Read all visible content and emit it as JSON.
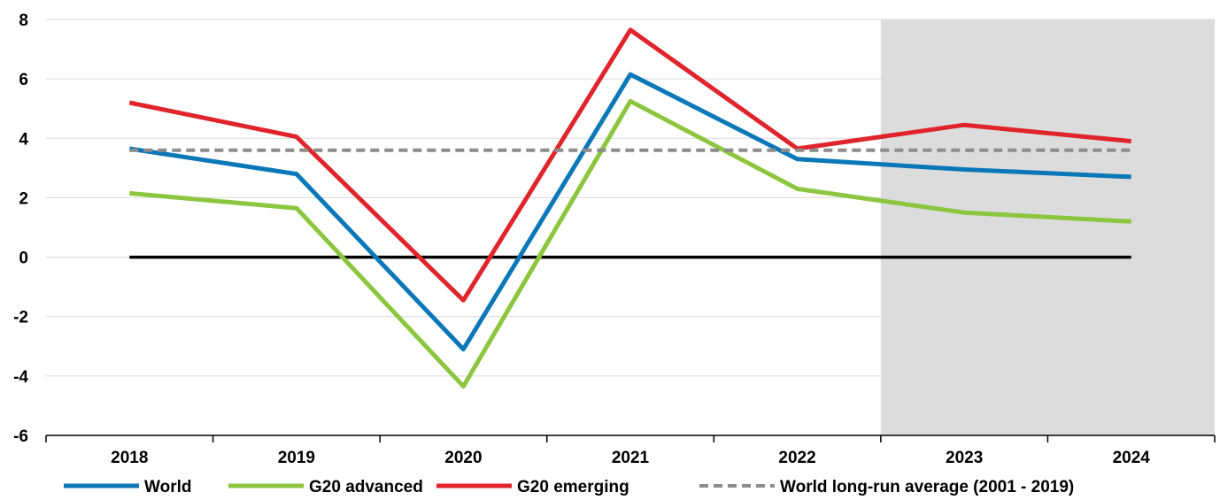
{
  "chart_data": {
    "type": "line",
    "categories": [
      "2018",
      "2019",
      "2020",
      "2021",
      "2022",
      "2023",
      "2024"
    ],
    "ylim": [
      -6,
      8
    ],
    "yticks": [
      -6,
      -4,
      -2,
      0,
      2,
      4,
      6,
      8
    ],
    "ytick_labels": [
      "-6",
      "-4",
      "-2",
      "0",
      "2",
      "4",
      "6",
      "8"
    ],
    "grid": "horizontal",
    "projection_shading": {
      "from_category": "2023",
      "to_category": "2024",
      "color": "#dcdcdc"
    },
    "zero_line": true,
    "legend_position": "bottom",
    "series": [
      {
        "name": "World",
        "color": "#0a78b8",
        "style": "solid",
        "values": [
          3.65,
          2.8,
          -3.1,
          6.15,
          3.3,
          2.95,
          2.7
        ]
      },
      {
        "name": "G20 advanced",
        "color": "#8cc63f",
        "style": "solid",
        "values": [
          2.15,
          1.65,
          -4.35,
          5.25,
          2.3,
          1.5,
          1.2
        ]
      },
      {
        "name": "G20 emerging",
        "color": "#e0242b",
        "style": "solid",
        "values": [
          5.2,
          4.05,
          -1.45,
          7.65,
          3.65,
          4.45,
          3.9
        ]
      },
      {
        "name": "World long-run average (2001 - 2019)",
        "color": "#8c8c8c",
        "style": "dashed",
        "values": [
          3.6,
          3.6,
          3.6,
          3.6,
          3.6,
          3.6,
          3.6
        ]
      }
    ]
  }
}
